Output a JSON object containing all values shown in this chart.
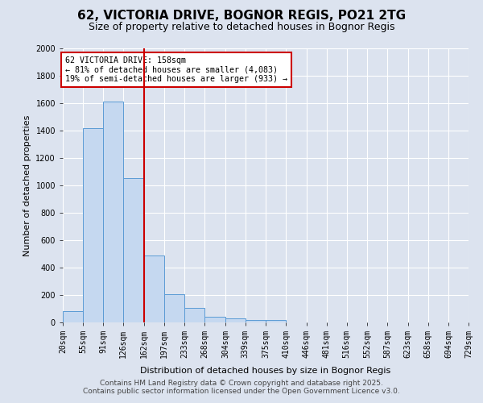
{
  "title1": "62, VICTORIA DRIVE, BOGNOR REGIS, PO21 2TG",
  "title2": "Size of property relative to detached houses in Bognor Regis",
  "xlabel": "Distribution of detached houses by size in Bognor Regis",
  "ylabel": "Number of detached properties",
  "bar_values": [
    80,
    1420,
    1610,
    1055,
    490,
    205,
    105,
    40,
    30,
    20,
    15,
    0,
    0,
    0,
    0,
    0,
    0,
    0,
    0,
    0
  ],
  "bin_edges": [
    20,
    55,
    91,
    126,
    162,
    197,
    233,
    268,
    304,
    339,
    375,
    410,
    446,
    481,
    516,
    552,
    587,
    623,
    658,
    694,
    729
  ],
  "bar_color": "#c5d8f0",
  "bar_edge_color": "#5b9bd5",
  "background_color": "#dce3ef",
  "grid_color": "#ffffff",
  "property_line_x": 162,
  "property_line_color": "#cc0000",
  "annotation_text": "62 VICTORIA DRIVE: 158sqm\n← 81% of detached houses are smaller (4,083)\n19% of semi-detached houses are larger (933) →",
  "annotation_box_color": "#cc0000",
  "ylim": [
    0,
    2000
  ],
  "yticks": [
    0,
    200,
    400,
    600,
    800,
    1000,
    1200,
    1400,
    1600,
    1800,
    2000
  ],
  "footer1": "Contains HM Land Registry data © Crown copyright and database right 2025.",
  "footer2": "Contains public sector information licensed under the Open Government Licence v3.0.",
  "title_fontsize": 11,
  "subtitle_fontsize": 9,
  "axis_label_fontsize": 8,
  "tick_fontsize": 7,
  "footer_fontsize": 6.5
}
